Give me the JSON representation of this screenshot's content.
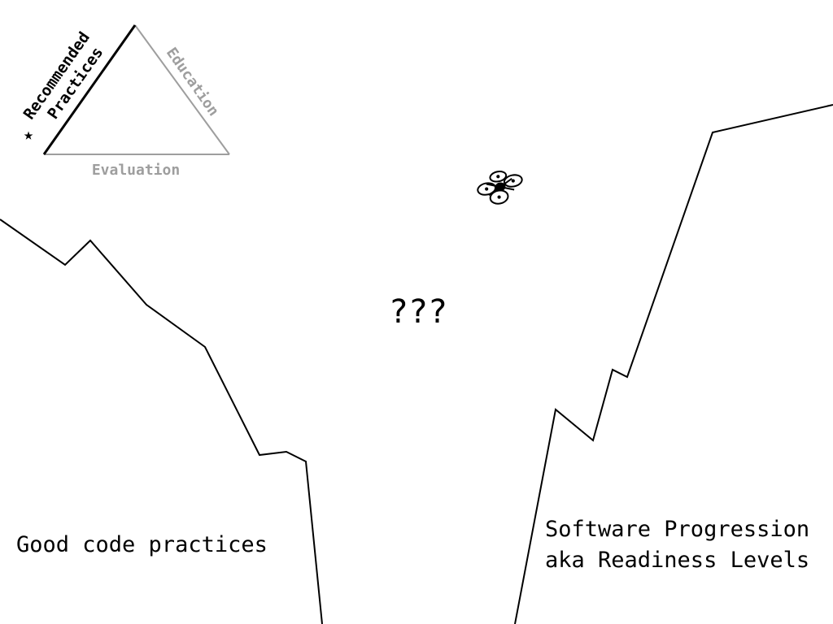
{
  "triangle": {
    "highlighted_side": [
      "Recommended",
      "Practices"
    ],
    "right_side": "Education",
    "bottom_side": "Evaluation",
    "star": "★",
    "highlight_color": "#000000",
    "muted_color": "#9e9e9e"
  },
  "center_label": "???",
  "left_cliff_label": "Good code practices",
  "right_cliff_label": [
    "Software Progression",
    "aka Readiness Levels"
  ],
  "drone_icon": "quadcopter-drone-icon"
}
